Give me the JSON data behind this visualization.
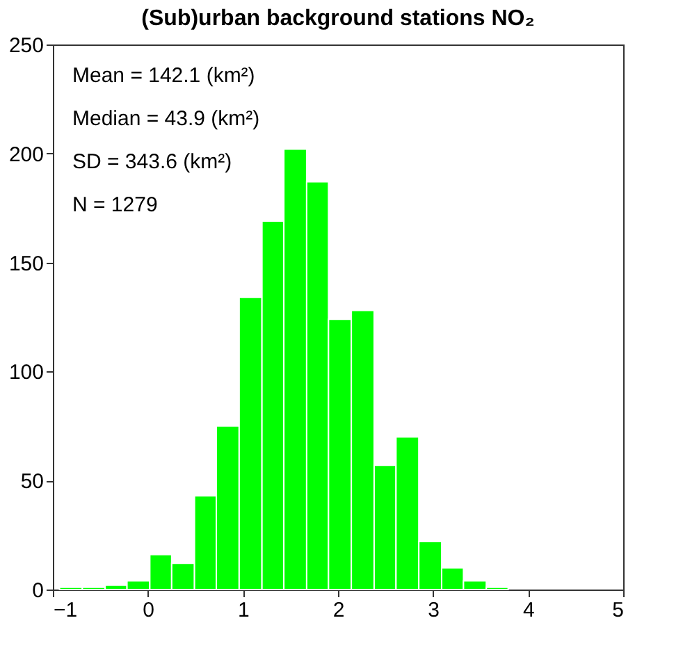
{
  "chart_data": {
    "type": "histogram",
    "title": "(Sub)urban background stations NO₂",
    "bins": [
      -0.93,
      -0.69,
      -0.45,
      -0.22,
      0.02,
      0.25,
      0.49,
      0.72,
      0.96,
      1.2,
      1.43,
      1.67,
      1.9,
      2.14,
      2.38,
      2.61,
      2.85,
      3.09,
      3.32,
      3.56,
      3.79
    ],
    "values": [
      1,
      1,
      2,
      4,
      16,
      12,
      43,
      75,
      134,
      169,
      202,
      187,
      124,
      128,
      57,
      70,
      22,
      10,
      4,
      1
    ],
    "color": "#00ff00",
    "xlim": [
      -1,
      5
    ],
    "xticks": [
      -1,
      0,
      1,
      2,
      3,
      4,
      5
    ],
    "ylim": [
      0,
      250
    ],
    "yticks": [
      0,
      50,
      100,
      150,
      200,
      250
    ],
    "grid": false,
    "annotations": [
      "Mean  = 142.1 (km²)",
      "Median = 43.9 (km²)",
      "SD = 343.6 (km²)",
      "N  = 1279"
    ]
  }
}
